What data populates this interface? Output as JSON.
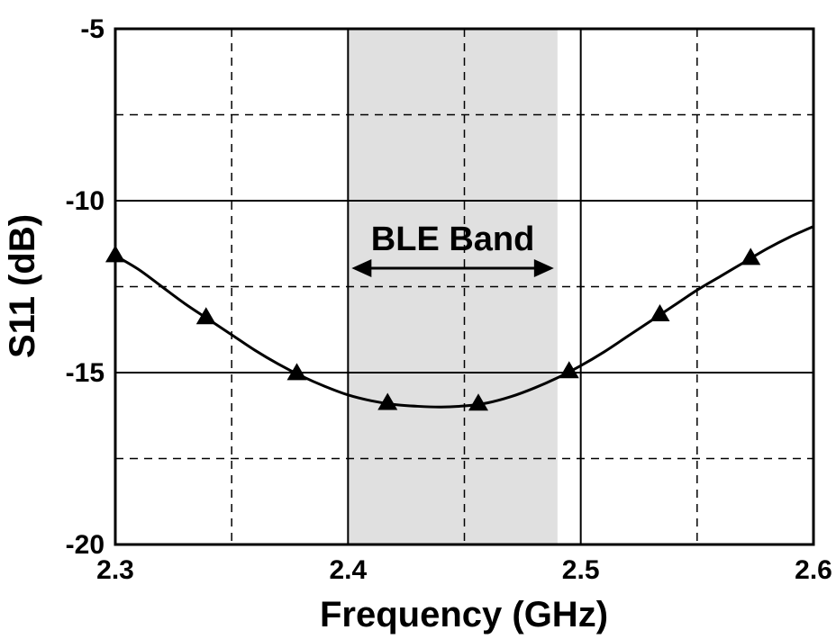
{
  "chart_data": {
    "type": "line",
    "xlabel": "Frequency (GHz)",
    "ylabel": "S11 (dB)",
    "xlim": [
      2.3,
      2.6
    ],
    "ylim": [
      -20,
      -5
    ],
    "xticks": [
      2.3,
      2.4,
      2.5,
      2.6
    ],
    "xtick_labels": [
      "2.3",
      "2.4",
      "2.5",
      "2.6"
    ],
    "yticks": [
      -5,
      -10,
      -15,
      -20
    ],
    "ytick_labels": [
      "-5",
      "-10",
      "-15",
      "-20"
    ],
    "grid": true,
    "band": {
      "label": "BLE Band",
      "x_start": 2.4,
      "x_end": 2.49,
      "color": "#e0e0e0"
    },
    "series": [
      {
        "marker": "triangle",
        "color": "#000000",
        "x": [
          2.3,
          2.31,
          2.32,
          2.33,
          2.34,
          2.35,
          2.36,
          2.37,
          2.38,
          2.39,
          2.4,
          2.41,
          2.42,
          2.43,
          2.44,
          2.45,
          2.46,
          2.47,
          2.48,
          2.49,
          2.5,
          2.51,
          2.52,
          2.53,
          2.54,
          2.55,
          2.56,
          2.57,
          2.58,
          2.59,
          2.6
        ],
        "y": [
          -11.6,
          -12.0,
          -12.5,
          -13.0,
          -13.45,
          -13.9,
          -14.35,
          -14.75,
          -15.1,
          -15.4,
          -15.65,
          -15.82,
          -15.93,
          -15.98,
          -16.0,
          -15.97,
          -15.88,
          -15.7,
          -15.45,
          -15.15,
          -14.8,
          -14.4,
          -13.95,
          -13.5,
          -13.05,
          -12.6,
          -12.2,
          -11.8,
          -11.4,
          -11.05,
          -10.75
        ]
      }
    ],
    "markers_x": [
      2.3,
      2.339,
      2.378,
      2.417,
      2.456,
      2.495,
      2.534,
      2.573
    ]
  }
}
